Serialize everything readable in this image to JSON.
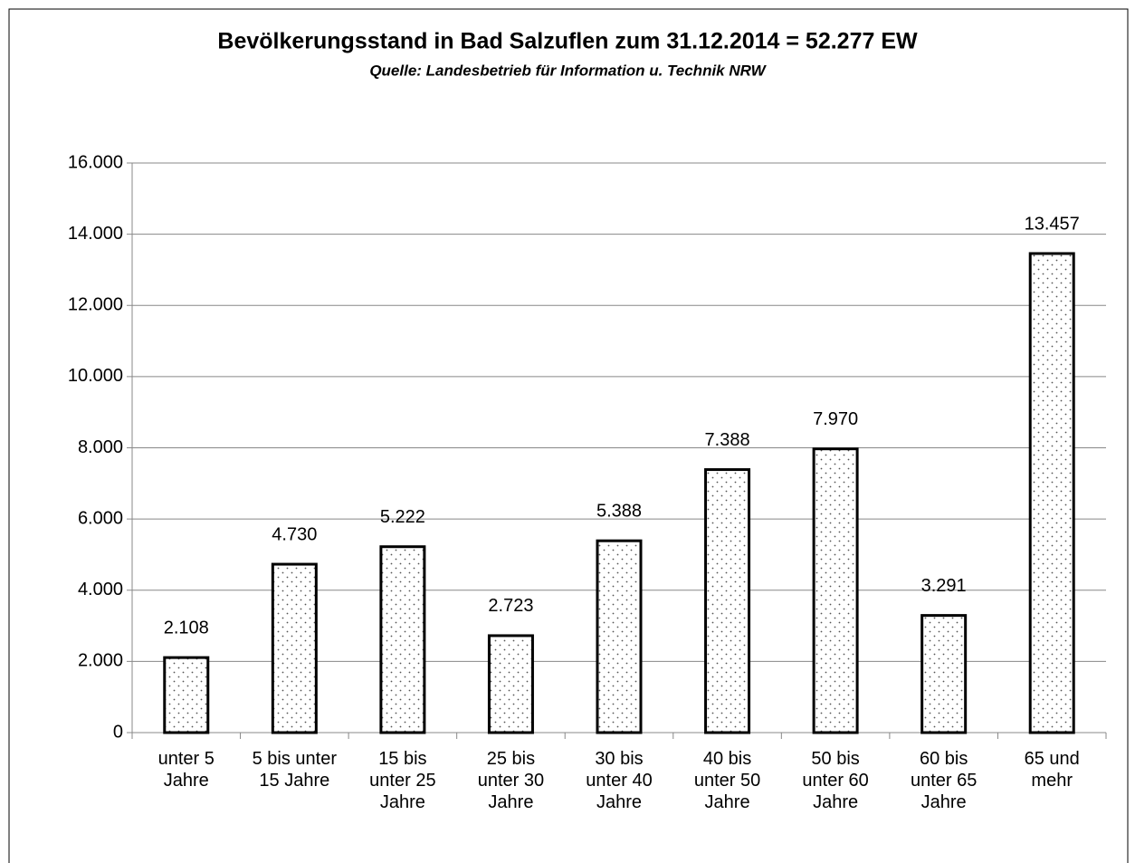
{
  "chart_data": {
    "type": "bar",
    "title": "Bevölkerungsstand in Bad Salzuflen zum 31.12.2014 = 52.277 EW",
    "subtitle": "Quelle: Landesbetrieb für Information u. Technik NRW",
    "categories": [
      "unter 5\nJahre",
      "5 bis unter\n15 Jahre",
      "15 bis\nunter 25\nJahre",
      "25 bis\nunter 30\nJahre",
      "30 bis\nunter 40\nJahre",
      "40 bis\nunter 50\nJahre",
      "50 bis\nunter 60\nJahre",
      "60 bis\nunter 65\nJahre",
      "65 und\nmehr"
    ],
    "values": [
      2108,
      4730,
      5222,
      2723,
      5388,
      7388,
      7970,
      3291,
      13457
    ],
    "value_labels": [
      "2.108",
      "4.730",
      "5.222",
      "2.723",
      "5.388",
      "7.388",
      "7.970",
      "3.291",
      "13.457"
    ],
    "color": "#000000",
    "ylim": [
      0,
      16000
    ],
    "yticks": [
      0,
      {
        "value": 2000,
        "label": "2.000"
      },
      {
        "value": 4000,
        "label": "4.000"
      },
      {
        "value": 6000,
        "label": "6.000"
      },
      {
        "value": 8000,
        "label": "8.000"
      },
      {
        "value": 10000,
        "label": "10.000"
      },
      {
        "value": 12000,
        "label": "12.000"
      },
      {
        "value": 14000,
        "label": "14.000"
      },
      {
        "value": 16000,
        "label": "16.000"
      }
    ],
    "grid": true
  }
}
